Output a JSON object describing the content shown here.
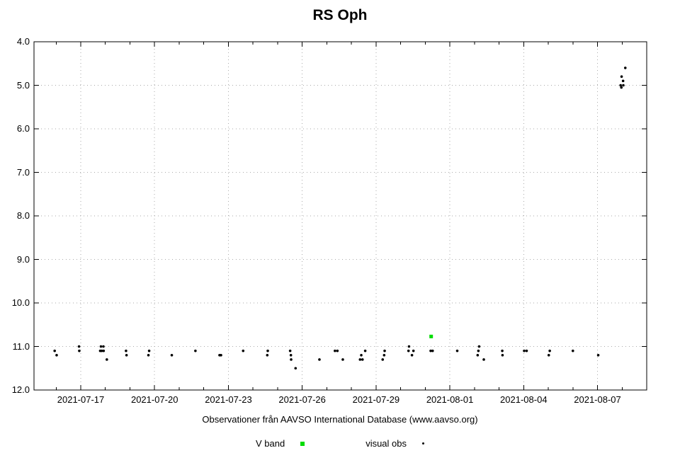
{
  "chart_data": {
    "type": "scatter",
    "title": "RS Oph",
    "caption": "Observationer från AAVSO International Database (www.aavso.org)",
    "x_axis": {
      "point_x_unit": "days since 2021-07-17 00:00 UT",
      "min_offset_days": -1.9,
      "max_offset_days": 23.0,
      "minor_tick_interval_days": 1,
      "grid": "dotted",
      "major_ticks": [
        {
          "offset": 0,
          "label": "2021-07-17"
        },
        {
          "offset": 3,
          "label": "2021-07-20"
        },
        {
          "offset": 6,
          "label": "2021-07-23"
        },
        {
          "offset": 9,
          "label": "2021-07-26"
        },
        {
          "offset": 12,
          "label": "2021-07-29"
        },
        {
          "offset": 15,
          "label": "2021-08-01"
        },
        {
          "offset": 18,
          "label": "2021-08-04"
        },
        {
          "offset": 21,
          "label": "2021-08-07"
        }
      ]
    },
    "y_axis": {
      "quantity": "magnitude",
      "min": 4.0,
      "max": 12.0,
      "inverted": true,
      "tick_interval": 1.0,
      "grid": "dotted",
      "ticks": [
        {
          "value": 4.0,
          "label": "4.0"
        },
        {
          "value": 5.0,
          "label": "5.0"
        },
        {
          "value": 6.0,
          "label": "6.0"
        },
        {
          "value": 7.0,
          "label": "7.0"
        },
        {
          "value": 8.0,
          "label": "8.0"
        },
        {
          "value": 9.0,
          "label": "9.0"
        },
        {
          "value": 10.0,
          "label": "10.0"
        },
        {
          "value": 11.0,
          "label": "11.0"
        },
        {
          "value": 12.0,
          "label": "12.0"
        }
      ]
    },
    "legend": [
      {
        "label": "V band",
        "marker": "square",
        "color": "#00dc00"
      },
      {
        "label": "visual obs",
        "marker": "dot",
        "color": "#000000"
      }
    ],
    "colors": {
      "v_band": "#00dc00",
      "visual_obs": "#000000",
      "grid": "#aaaaaa",
      "frame": "#000000",
      "background": "#ffffff"
    },
    "series": [
      {
        "name": "V band",
        "marker": "square",
        "color": "#00dc00",
        "points": [
          [
            14.24,
            10.77
          ]
        ]
      },
      {
        "name": "visual obs",
        "marker": "dot",
        "color": "#000000",
        "points": [
          [
            -1.06,
            11.1
          ],
          [
            -0.98,
            11.2
          ],
          [
            -0.07,
            11.0
          ],
          [
            -0.06,
            11.1
          ],
          [
            0.79,
            11.1
          ],
          [
            0.82,
            11.0
          ],
          [
            0.85,
            11.1
          ],
          [
            0.92,
            11.0
          ],
          [
            0.93,
            11.1
          ],
          [
            1.06,
            11.3
          ],
          [
            1.84,
            11.1
          ],
          [
            1.86,
            11.2
          ],
          [
            2.75,
            11.2
          ],
          [
            2.78,
            11.1
          ],
          [
            3.7,
            11.2
          ],
          [
            4.66,
            11.1
          ],
          [
            5.64,
            11.2
          ],
          [
            5.7,
            11.2
          ],
          [
            6.6,
            11.1
          ],
          [
            7.58,
            11.2
          ],
          [
            7.6,
            11.1
          ],
          [
            8.51,
            11.1
          ],
          [
            8.54,
            11.2
          ],
          [
            8.55,
            11.3
          ],
          [
            8.73,
            11.5
          ],
          [
            9.7,
            11.3
          ],
          [
            10.33,
            11.1
          ],
          [
            10.43,
            11.1
          ],
          [
            10.65,
            11.3
          ],
          [
            11.35,
            11.3
          ],
          [
            11.4,
            11.2
          ],
          [
            11.45,
            11.3
          ],
          [
            11.56,
            11.1
          ],
          [
            12.27,
            11.3
          ],
          [
            12.33,
            11.2
          ],
          [
            12.35,
            11.1
          ],
          [
            13.32,
            11.1
          ],
          [
            13.34,
            11.0
          ],
          [
            13.46,
            11.2
          ],
          [
            13.52,
            11.1
          ],
          [
            14.22,
            11.1
          ],
          [
            14.3,
            11.1
          ],
          [
            15.3,
            11.1
          ],
          [
            16.13,
            11.2
          ],
          [
            16.16,
            11.1
          ],
          [
            16.19,
            11.0
          ],
          [
            16.38,
            11.3
          ],
          [
            17.13,
            11.1
          ],
          [
            17.14,
            11.2
          ],
          [
            18.02,
            11.1
          ],
          [
            18.12,
            11.1
          ],
          [
            19.02,
            11.2
          ],
          [
            19.06,
            11.1
          ],
          [
            20.0,
            11.1
          ],
          [
            21.03,
            11.2
          ],
          [
            21.94,
            5.0
          ],
          [
            21.97,
            5.05
          ],
          [
            21.98,
            4.8
          ],
          [
            22.04,
            4.9
          ],
          [
            22.05,
            5.0
          ],
          [
            22.13,
            4.6
          ]
        ]
      }
    ]
  }
}
